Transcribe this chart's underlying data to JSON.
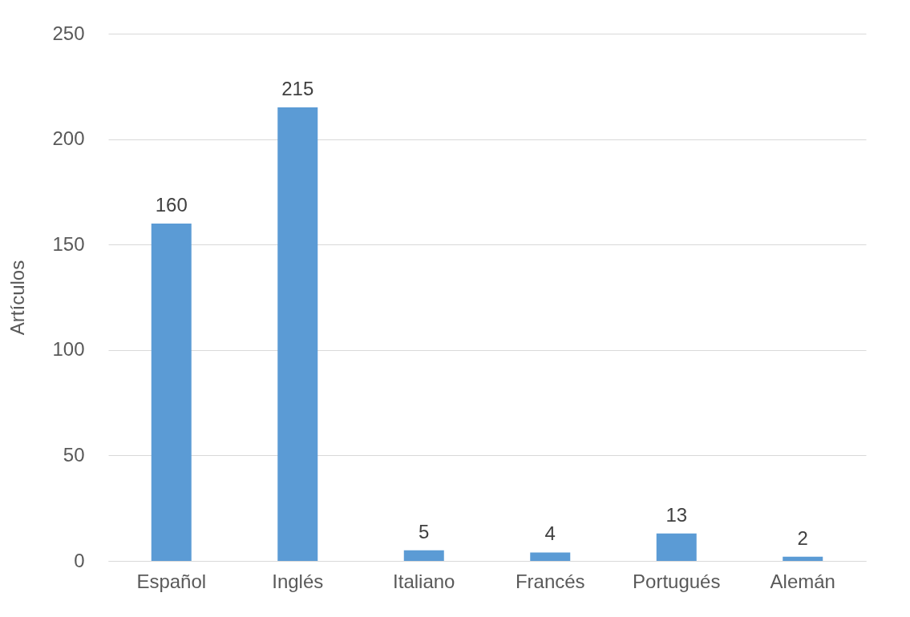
{
  "chart_data": {
    "type": "bar",
    "ylabel": "Artículos",
    "categories": [
      "Español",
      "Inglés",
      "Italiano",
      "Francés",
      "Portugués",
      "Alemán"
    ],
    "values": [
      160,
      215,
      5,
      4,
      13,
      2
    ],
    "color": "#5b9bd5",
    "ylim": [
      0,
      250
    ],
    "yticks": [
      0,
      50,
      100,
      150,
      200,
      250
    ],
    "grid": "y",
    "data_labels": true
  }
}
